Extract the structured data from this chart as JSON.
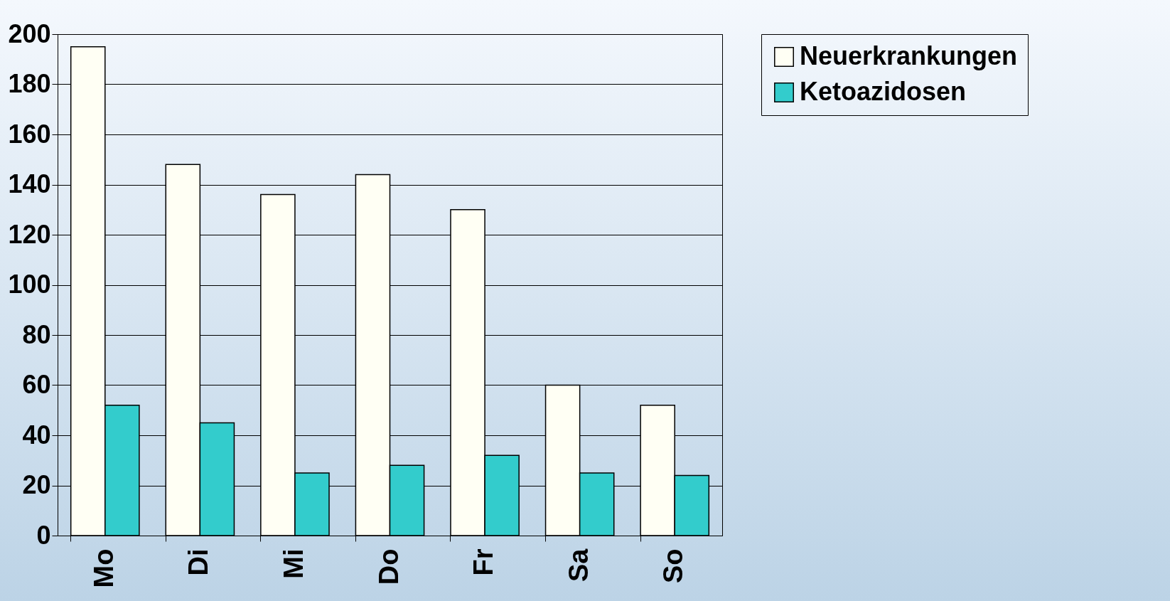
{
  "chart_data": {
    "type": "bar",
    "categories": [
      "Mo",
      "Di",
      "Mi",
      "Do",
      "Fr",
      "Sa",
      "So"
    ],
    "series": [
      {
        "name": "Neuerkrankungen",
        "color": "#fffff4",
        "values": [
          195,
          148,
          136,
          144,
          130,
          60,
          52
        ]
      },
      {
        "name": "Ketoazidosen",
        "color": "#33cccc",
        "values": [
          52,
          45,
          25,
          28,
          32,
          25,
          24
        ]
      }
    ],
    "ylim": [
      0,
      200
    ],
    "yticks": [
      0,
      20,
      40,
      60,
      80,
      100,
      120,
      140,
      160,
      180,
      200
    ],
    "grid": "y",
    "legend": "right"
  }
}
